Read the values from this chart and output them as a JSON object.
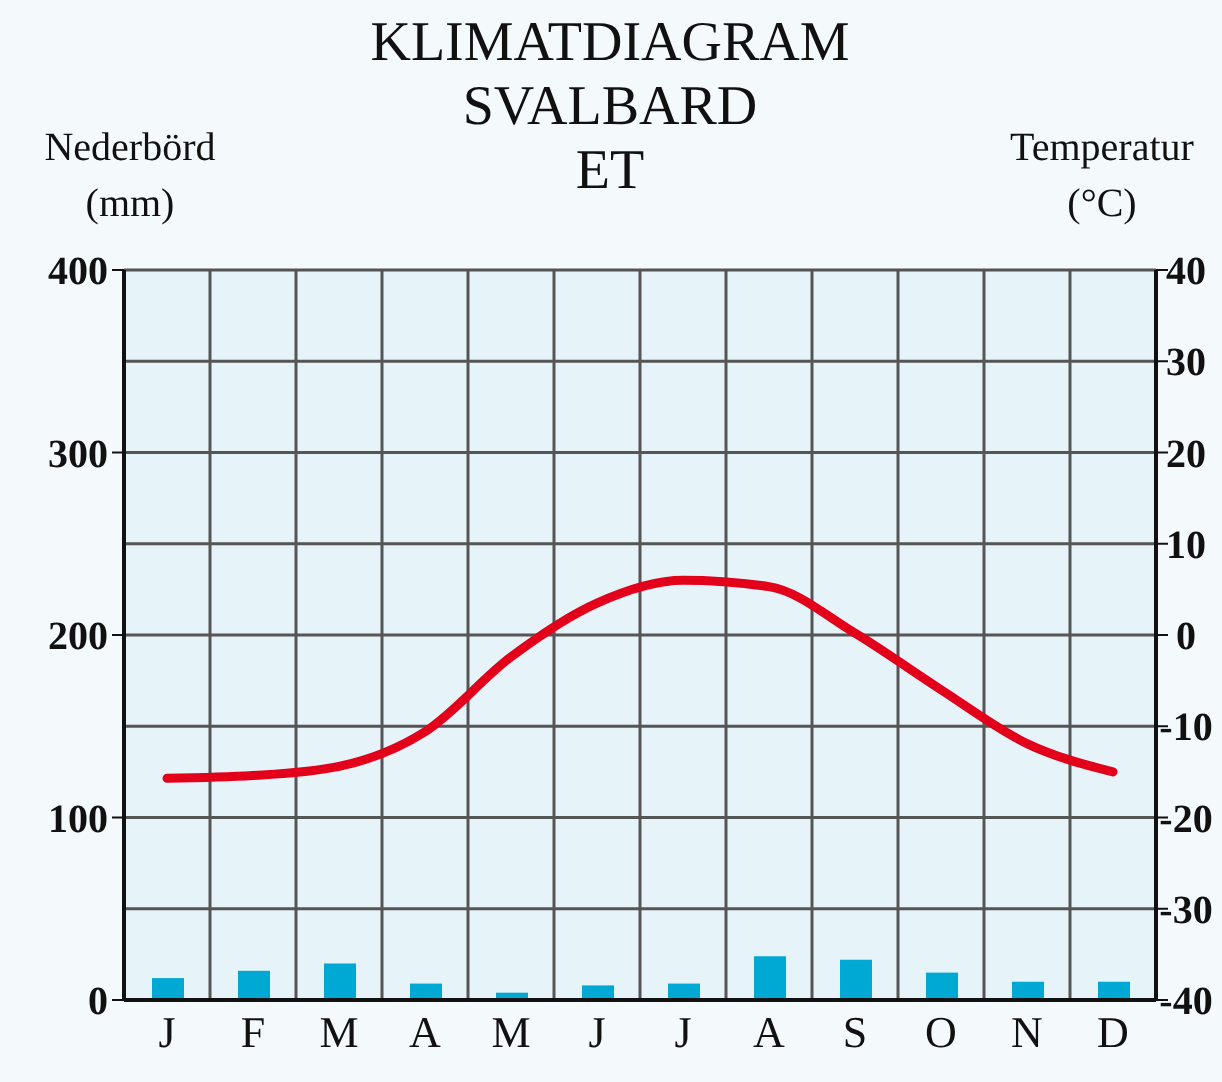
{
  "chart_data": {
    "type": "bar",
    "title": "KLIMATDIAGRAM SVALBARD",
    "subtitle": "ET",
    "ylabel": "Nederbörd (mm)",
    "y2label": "Temperatur (°C)",
    "categories": [
      "J",
      "F",
      "M",
      "A",
      "M",
      "J",
      "J",
      "A",
      "S",
      "O",
      "N",
      "D"
    ],
    "series": [
      {
        "color": "#00a8d4",
        "values": [
          12,
          16,
          20,
          9,
          4,
          8,
          9,
          24,
          22,
          15,
          10,
          10
        ]
      },
      {
        "type": "line",
        "axis": "y2",
        "color": "#e2001a",
        "values": [
          -15.7,
          -15.4,
          -14.4,
          -10.6,
          -2.4,
          3.5,
          6.0,
          5.3,
          0.2,
          -6.0,
          -11.9,
          -15.0
        ]
      }
    ],
    "ylim": [
      0,
      400
    ],
    "yticks": [
      0,
      100,
      200,
      300,
      400
    ],
    "y2lim": [
      -40,
      40
    ],
    "y2ticks": [
      -40,
      -30,
      -20,
      -10,
      0,
      10,
      20,
      30,
      40
    ],
    "grid": true,
    "legend": false,
    "marker": "none",
    "line_style": "solid"
  }
}
